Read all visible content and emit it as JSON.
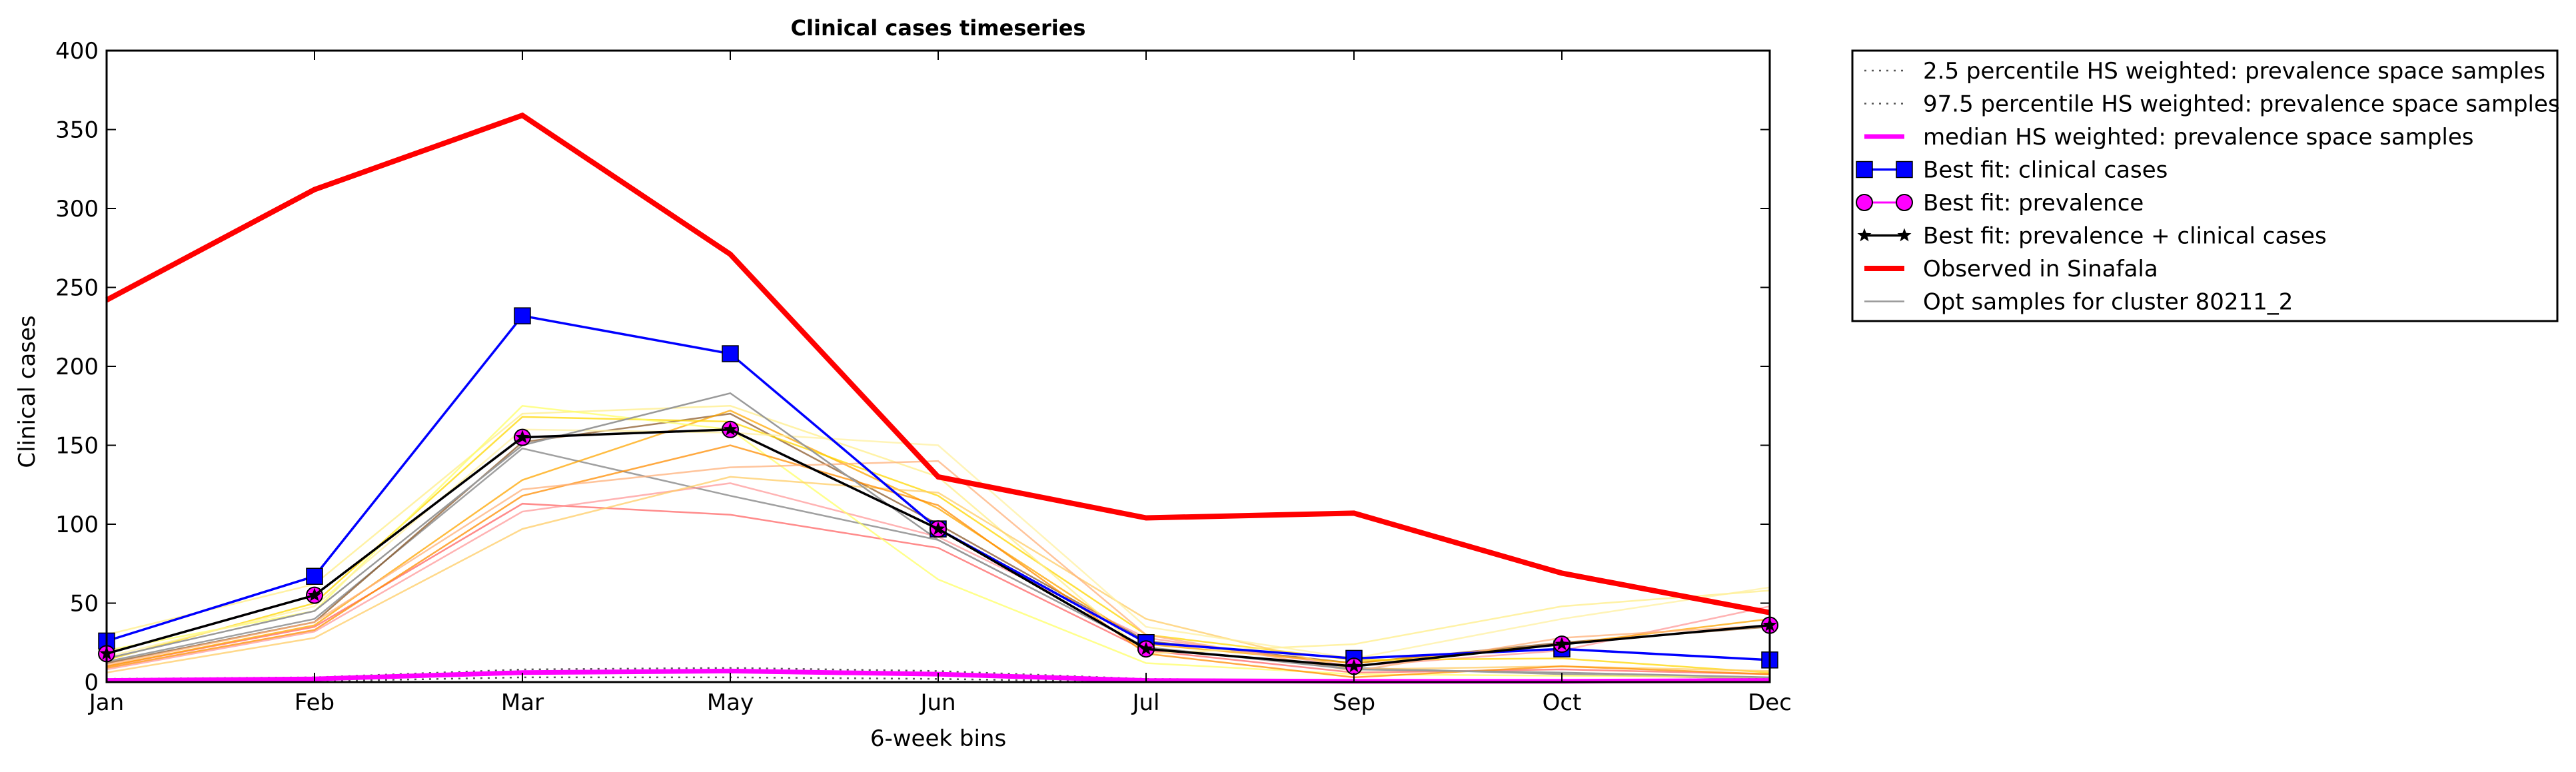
{
  "chart_data": {
    "type": "line",
    "title": "Clinical cases timeseries",
    "xlabel": "6-week bins",
    "ylabel": "Clinical cases",
    "categories": [
      "Jan",
      "Feb",
      "Mar",
      "May",
      "Jun",
      "Jul",
      "Sep",
      "Oct",
      "Dec"
    ],
    "ylim": [
      0,
      400
    ],
    "yticks": [
      "0",
      "50",
      "100",
      "150",
      "200",
      "250",
      "300",
      "350",
      "400"
    ],
    "grid": false,
    "legend_position": "outside-right-top",
    "colors": {
      "observed": "#ff0000",
      "best_clinical": "#0000ff",
      "best_prevalence_marker": "#ff00ff",
      "best_combined": "#000000",
      "median": "#ff00ff",
      "percentile": "#555555",
      "samples": "#999999"
    },
    "series": [
      {
        "name": "2.5 percentile HS weighted: prevalence space samples",
        "key": "p2_5",
        "values": [
          0,
          0.5,
          3,
          3,
          2,
          0,
          0,
          0,
          0
        ]
      },
      {
        "name": "97.5 percentile HS weighted: prevalence space samples",
        "key": "p97_5",
        "values": [
          2,
          3,
          8,
          9,
          7,
          2,
          1,
          1,
          2
        ]
      },
      {
        "name": "median HS weighted: prevalence space samples",
        "key": "median",
        "values": [
          1,
          2,
          6,
          7,
          5,
          1,
          0.5,
          0.5,
          1
        ]
      },
      {
        "name": "Best fit: clinical cases",
        "key": "best_clinical",
        "values": [
          26,
          67,
          232,
          208,
          97,
          25,
          15,
          21,
          14
        ]
      },
      {
        "name": "Best fit: prevalence",
        "key": "best_prevalence",
        "values": [
          18,
          55,
          155,
          160,
          97,
          21,
          10,
          24,
          36
        ]
      },
      {
        "name": "Best fit: prevalence + clinical cases",
        "key": "best_combined",
        "values": [
          18,
          55,
          155,
          160,
          97,
          21,
          10,
          24,
          36
        ]
      },
      {
        "name": "Observed in Sinafala",
        "key": "observed",
        "values": [
          242,
          312,
          359,
          271,
          130,
          104,
          107,
          69,
          44
        ]
      },
      {
        "name": "Opt samples for cluster 80211_2",
        "key": "samples",
        "values": [
          15,
          45,
          150,
          183,
          90,
          22,
          8,
          6,
          3
        ]
      }
    ],
    "sample_lines": [
      {
        "color": "#808080",
        "values": [
          13,
          40,
          148,
          118,
          90,
          22,
          9,
          5,
          2
        ]
      },
      {
        "color": "#8b5a2b",
        "values": [
          12,
          38,
          152,
          170,
          100,
          26,
          12,
          25,
          35
        ]
      },
      {
        "color": "#ff6666",
        "values": [
          10,
          35,
          113,
          106,
          85,
          20,
          6,
          8,
          5
        ]
      },
      {
        "color": "#ff9999",
        "values": [
          8,
          32,
          108,
          126,
          92,
          28,
          10,
          20,
          48
        ]
      },
      {
        "color": "#ffa500",
        "values": [
          10,
          36,
          128,
          172,
          110,
          24,
          12,
          24,
          40
        ]
      },
      {
        "color": "#ffd700",
        "values": [
          14,
          50,
          168,
          165,
          118,
          30,
          14,
          15,
          6
        ]
      },
      {
        "color": "#ffee88",
        "values": [
          30,
          62,
          170,
          175,
          130,
          18,
          24,
          48,
          58
        ]
      },
      {
        "color": "#ffff66",
        "values": [
          20,
          45,
          175,
          160,
          65,
          12,
          5,
          4,
          3
        ]
      },
      {
        "color": "#ffcc66",
        "values": [
          6,
          28,
          97,
          130,
          120,
          40,
          8,
          10,
          7
        ]
      },
      {
        "color": "#ff8c00",
        "values": [
          9,
          33,
          118,
          150,
          112,
          18,
          3,
          10,
          5
        ]
      },
      {
        "color": "#ffb07a",
        "values": [
          11,
          38,
          122,
          136,
          140,
          30,
          7,
          28,
          36
        ]
      },
      {
        "color": "#fff0a0",
        "values": [
          16,
          48,
          160,
          158,
          150,
          35,
          15,
          40,
          60
        ]
      }
    ]
  }
}
